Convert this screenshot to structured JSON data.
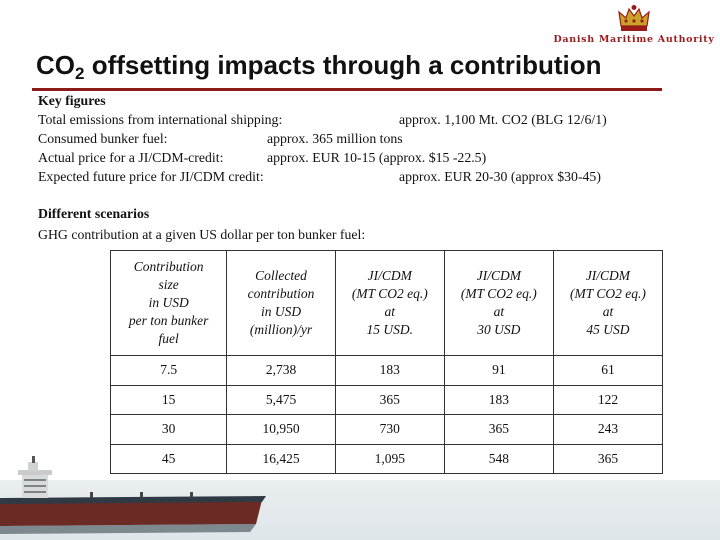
{
  "logo": {
    "org": "Danish Maritime Authority"
  },
  "title": {
    "co": "CO",
    "sub": "2",
    "rest": " offsetting impacts through a contribution"
  },
  "key_figures": {
    "heading": "Key figures",
    "rows": [
      {
        "label": "Total emissions from international shipping:",
        "value": "approx. 1,100 Mt. CO2 (BLG 12/6/1)"
      },
      {
        "label": "Consumed bunker fuel:",
        "value": "approx. 365 million tons"
      },
      {
        "label": "Actual price for a JI/CDM-credit:",
        "value": "approx. EUR 10-15 (approx. $15 -22.5)"
      },
      {
        "label": "Expected future price for JI/CDM credit:",
        "value": "approx. EUR 20-30 (approx $30-45)"
      }
    ]
  },
  "scenarios": {
    "heading": "Different scenarios",
    "subheading": "GHG contribution at a given US dollar per ton bunker fuel:"
  },
  "table": {
    "headers": [
      [
        "Contribution",
        "size",
        "in USD",
        "per ton bunker",
        "fuel"
      ],
      [
        "Collected",
        "contribution",
        "in USD",
        "(million)/yr"
      ],
      [
        "JI/CDM",
        "(MT CO2 eq.)",
        "at",
        "15 USD."
      ],
      [
        "JI/CDM",
        "(MT CO2 eq.)",
        "at",
        "30 USD"
      ],
      [
        "JI/CDM",
        "(MT CO2 eq.)",
        "at",
        "45 USD"
      ]
    ],
    "rows": [
      [
        "7.5",
        "2,738",
        "183",
        "91",
        "61"
      ],
      [
        "15",
        "5,475",
        "365",
        "183",
        "122"
      ],
      [
        "30",
        "10,950",
        "730",
        "365",
        "243"
      ],
      [
        "45",
        "16,425",
        "1,095",
        "548",
        "365"
      ]
    ]
  },
  "colors": {
    "accent": "#8b1a1a",
    "logo_text": "#9b1b1b"
  }
}
